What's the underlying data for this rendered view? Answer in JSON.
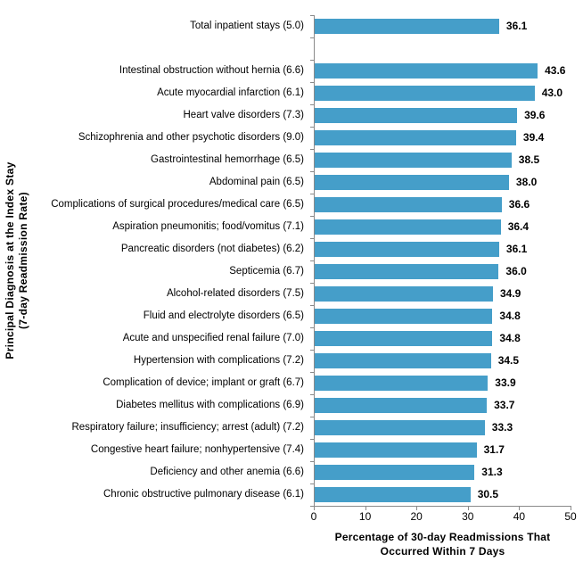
{
  "chart_data": {
    "type": "bar",
    "orientation": "horizontal",
    "title": "",
    "xlabel_lines": [
      "Percentage of 30-day Readmissions That",
      "Occurred Within 7 Days"
    ],
    "ylabel_lines": [
      "Principal Diagnosis at the Index Stay",
      "(7-day Readmission Rate)"
    ],
    "xlim": [
      0,
      50
    ],
    "xticks": [
      0,
      10,
      20,
      30,
      40,
      50
    ],
    "grid": false,
    "legend": false,
    "bar_color": "#459EC9",
    "axis_color": "#8A8A8A",
    "value_label_format": "one-decimal",
    "spacer_after_index": 0,
    "rows": [
      {
        "label": "Total inpatient stays (5.0)",
        "value": 36.1
      },
      {
        "label": "Intestinal obstruction without hernia (6.6)",
        "value": 43.6
      },
      {
        "label": "Acute myocardial infarction (6.1)",
        "value": 43.0
      },
      {
        "label": "Heart valve disorders (7.3)",
        "value": 39.6
      },
      {
        "label": "Schizophrenia and other psychotic disorders (9.0)",
        "value": 39.4
      },
      {
        "label": "Gastrointestinal hemorrhage (6.5)",
        "value": 38.5
      },
      {
        "label": "Abdominal pain (6.5)",
        "value": 38.0
      },
      {
        "label": "Complications of surgical procedures/medical care (6.5)",
        "value": 36.6
      },
      {
        "label": "Aspiration pneumonitis; food/vomitus (7.1)",
        "value": 36.4
      },
      {
        "label": "Pancreatic disorders (not diabetes) (6.2)",
        "value": 36.1
      },
      {
        "label": "Septicemia (6.7)",
        "value": 36.0
      },
      {
        "label": "Alcohol-related disorders (7.5)",
        "value": 34.9
      },
      {
        "label": "Fluid and electrolyte disorders (6.5)",
        "value": 34.8
      },
      {
        "label": "Acute and unspecified renal failure (7.0)",
        "value": 34.8
      },
      {
        "label": "Hypertension with complications (7.2)",
        "value": 34.5
      },
      {
        "label": "Complication of device; implant or graft (6.7)",
        "value": 33.9
      },
      {
        "label": "Diabetes mellitus with complications (6.9)",
        "value": 33.7
      },
      {
        "label": "Respiratory failure; insufficiency; arrest (adult) (7.2)",
        "value": 33.3
      },
      {
        "label": "Congestive heart failure; nonhypertensive (7.4)",
        "value": 31.7
      },
      {
        "label": "Deficiency and other anemia (6.6)",
        "value": 31.3
      },
      {
        "label": "Chronic obstructive pulmonary disease (6.1)",
        "value": 30.5
      }
    ]
  }
}
